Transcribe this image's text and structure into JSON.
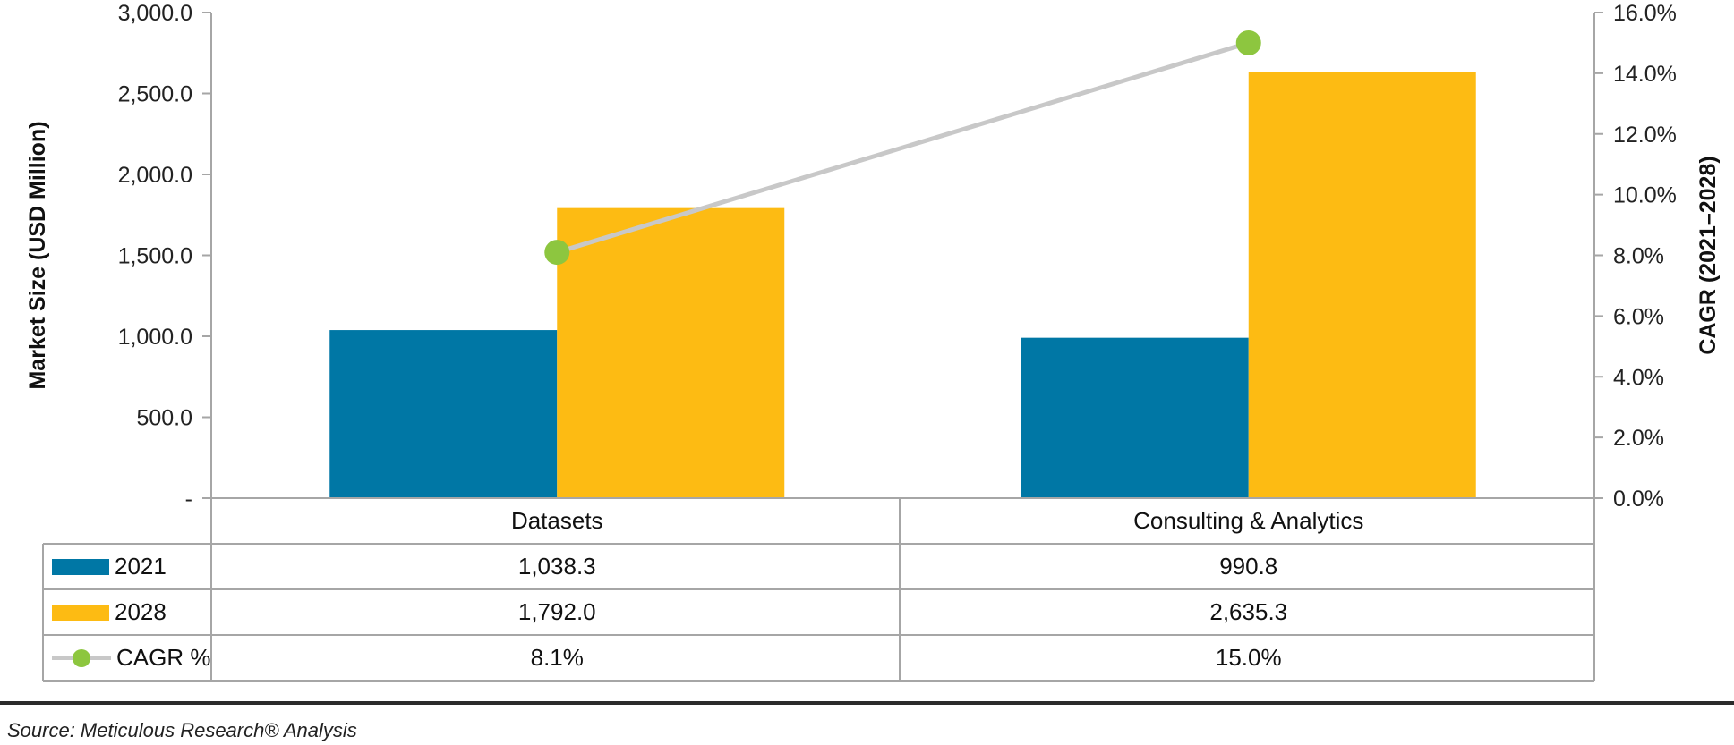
{
  "chart_data": {
    "type": "bar",
    "categories": [
      "Datasets",
      "Consulting & Analytics"
    ],
    "series": [
      {
        "name": "2021",
        "values": [
          1038.3,
          990.8
        ],
        "labels": [
          "1,038.3",
          "990.8"
        ],
        "color": "#0077a5"
      },
      {
        "name": "2028",
        "values": [
          1792.0,
          2635.3
        ],
        "labels": [
          "1,792.0",
          "2,635.3"
        ],
        "color": "#fdbb13"
      }
    ],
    "line_series": {
      "name": "CAGR %",
      "values": [
        8.1,
        15.0
      ],
      "labels": [
        "8.1%",
        "15.0%"
      ],
      "axis": "secondary",
      "line_color": "#c8c8c8",
      "marker_color": "#8dc63f"
    },
    "ylabel": "Market Size (USD Million)",
    "y2label": "CAGR (2021–2028)",
    "ylim": [
      0,
      3000
    ],
    "y2lim": [
      0,
      16
    ],
    "y_ticks": [
      0,
      500,
      1000,
      1500,
      2000,
      2500,
      3000
    ],
    "y_tick_labels": [
      "-",
      "500.0",
      "1,000.0",
      "1,500.0",
      "2,000.0",
      "2,500.0",
      "3,000.0"
    ],
    "y2_ticks": [
      0,
      2,
      4,
      6,
      8,
      10,
      12,
      14,
      16
    ],
    "y2_tick_labels": [
      "0.0%",
      "2.0%",
      "4.0%",
      "6.0%",
      "8.0%",
      "10.0%",
      "12.0%",
      "14.0%",
      "16.0%"
    ],
    "grid": false,
    "data_table": true,
    "source": "Source: Meticulous Research® Analysis"
  }
}
